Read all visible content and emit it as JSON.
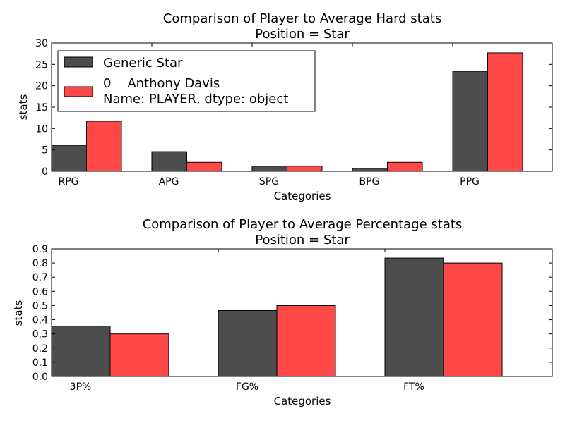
{
  "chart_data": [
    {
      "type": "bar",
      "title": "Comparison of Player to Average Hard stats",
      "subtitle": "Position = Star",
      "xlabel": "Categories",
      "ylabel": "stats",
      "categories": [
        "RPG",
        "APG",
        "SPG",
        "BPG",
        "PPG"
      ],
      "ylim": [
        0,
        30
      ],
      "yticks": [
        "0",
        "5",
        "10",
        "15",
        "20",
        "25",
        "30"
      ],
      "legend": "upper-left",
      "series": [
        {
          "name": "Generic Star",
          "color": "#4d4d4d",
          "values": [
            6.1,
            4.6,
            1.2,
            0.7,
            23.4
          ]
        },
        {
          "name": "0    Anthony Davis",
          "name_line2": "Name: PLAYER, dtype: object",
          "color": "#ff4949",
          "values": [
            11.7,
            2.1,
            1.2,
            2.1,
            27.7
          ]
        }
      ]
    },
    {
      "type": "bar",
      "title": "Comparison of Player to Average Percentage stats",
      "subtitle": "Position = Star",
      "xlabel": "Categories",
      "ylabel": "stats",
      "categories": [
        "3P%",
        "FG%",
        "FT%"
      ],
      "ylim": [
        0,
        0.9
      ],
      "yticks": [
        "0.0",
        "0.1",
        "0.2",
        "0.3",
        "0.4",
        "0.5",
        "0.6",
        "0.7",
        "0.8",
        "0.9"
      ],
      "series": [
        {
          "name": "Generic Star",
          "color": "#4d4d4d",
          "values": [
            0.355,
            0.465,
            0.835
          ]
        },
        {
          "name": "0    Anthony Davis",
          "color": "#ff4949",
          "values": [
            0.3,
            0.5,
            0.8
          ]
        }
      ]
    }
  ]
}
